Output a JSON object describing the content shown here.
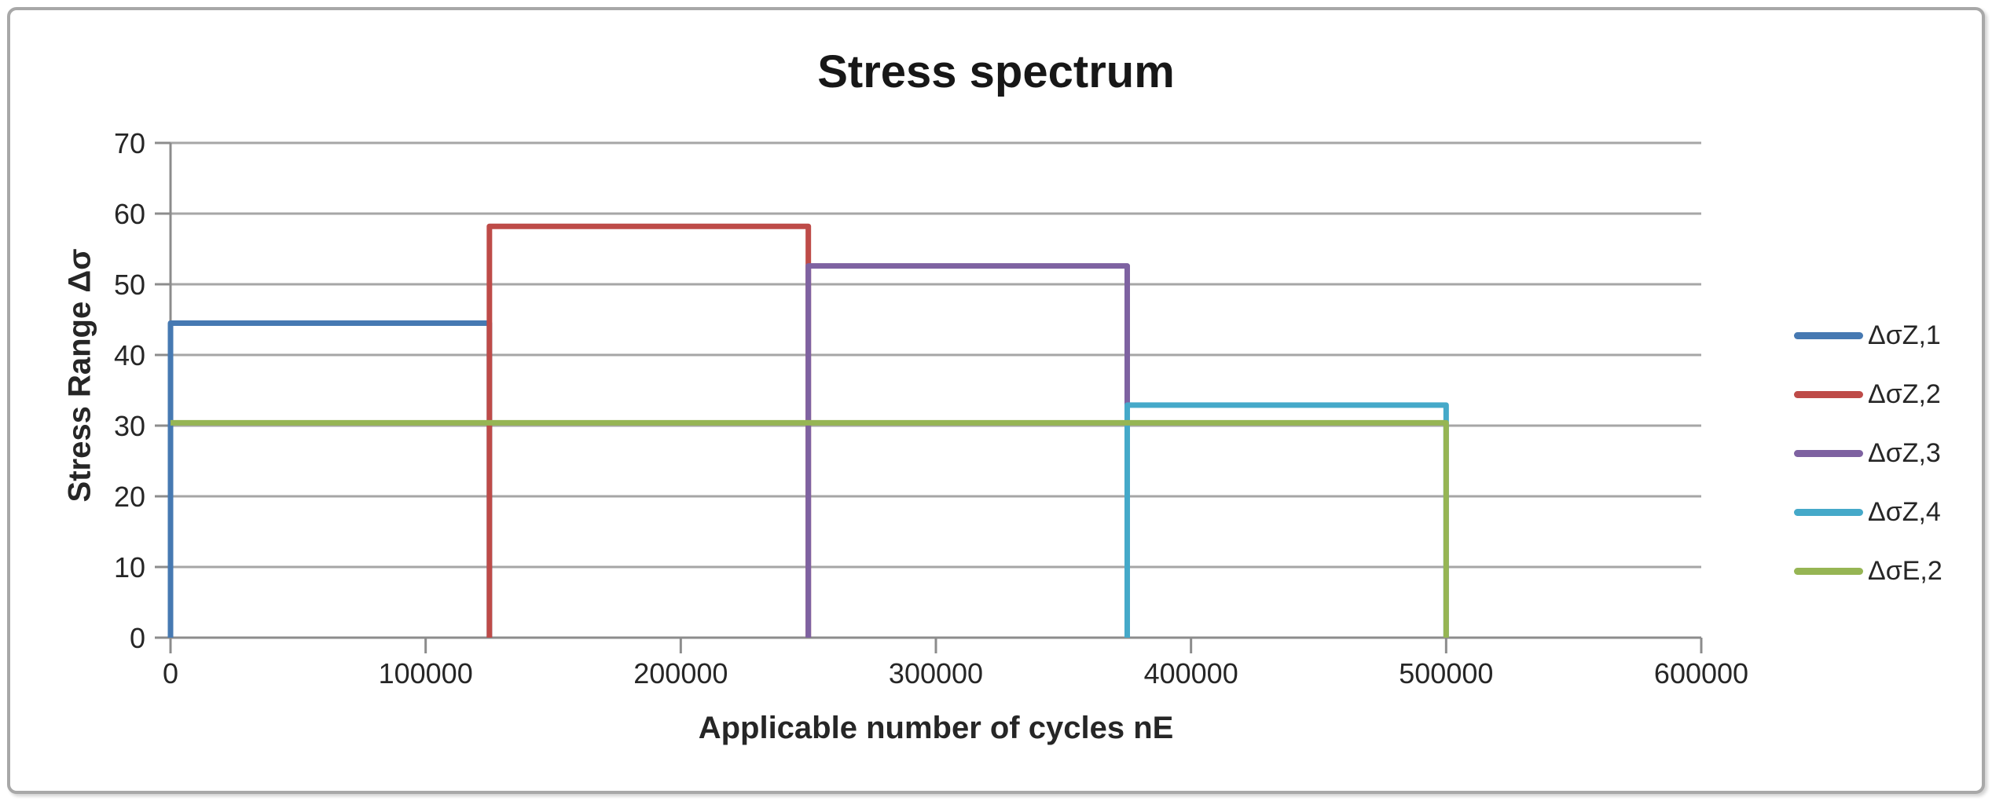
{
  "chart_data": {
    "type": "line",
    "title": "Stress spectrum",
    "xlabel": "Applicable number of cycles  nE",
    "ylabel": "Stress Range Δσ",
    "xlim": [
      0,
      600000
    ],
    "ylim": [
      0,
      70
    ],
    "x_ticks": [
      0,
      100000,
      200000,
      300000,
      400000,
      500000,
      600000
    ],
    "y_ticks": [
      0,
      10,
      20,
      30,
      40,
      50,
      60,
      70
    ],
    "grid": "horizontal-only",
    "legend_position": "right",
    "colors": {
      "gridline": "#a6a6a6",
      "axis": "#8c8c8c",
      "text": "#262626",
      "border": "#a8a8a8"
    },
    "series": [
      {
        "name": "ΔσZ,1",
        "color": "#4679B2",
        "level": 44.5,
        "x_start": 0,
        "x_end": 125000,
        "points": [
          [
            0,
            0
          ],
          [
            0,
            44.5
          ],
          [
            125000,
            44.5
          ],
          [
            125000,
            0
          ]
        ]
      },
      {
        "name": "ΔσZ,2",
        "color": "#BE4B48",
        "level": 58.2,
        "x_start": 125000,
        "x_end": 250000,
        "points": [
          [
            125000,
            0
          ],
          [
            125000,
            58.2
          ],
          [
            250000,
            58.2
          ],
          [
            250000,
            0
          ]
        ]
      },
      {
        "name": "ΔσZ,3",
        "color": "#7E62A1",
        "level": 52.6,
        "x_start": 250000,
        "x_end": 375000,
        "points": [
          [
            250000,
            0
          ],
          [
            250000,
            52.6
          ],
          [
            375000,
            52.6
          ],
          [
            375000,
            0
          ]
        ]
      },
      {
        "name": "ΔσZ,4",
        "color": "#45A9C9",
        "level": 32.9,
        "x_start": 375000,
        "x_end": 500000,
        "points": [
          [
            375000,
            0
          ],
          [
            375000,
            32.9
          ],
          [
            500000,
            32.9
          ],
          [
            500000,
            0
          ]
        ]
      },
      {
        "name": "ΔσE,2",
        "color": "#96B554",
        "level": 30.4,
        "x_start": 0,
        "x_end": 500000,
        "points": [
          [
            0,
            30.4
          ],
          [
            500000,
            30.4
          ],
          [
            500000,
            0
          ]
        ]
      }
    ]
  }
}
